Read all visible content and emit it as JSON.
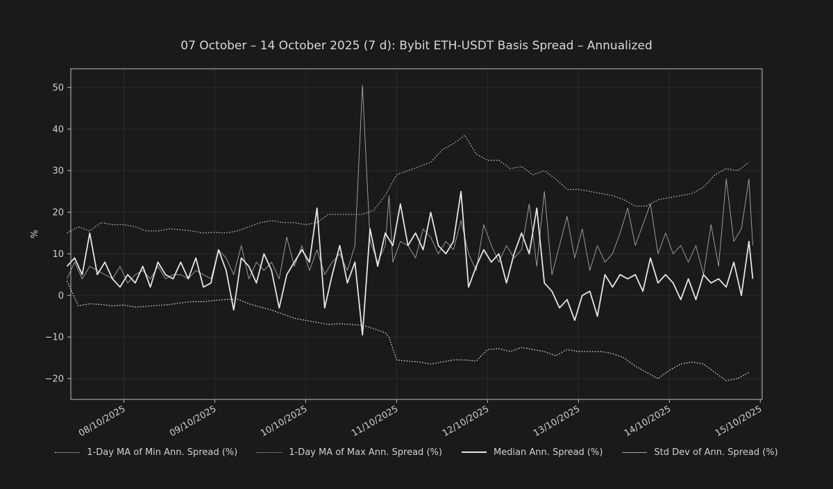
{
  "chart_data": {
    "type": "line",
    "title": "07 October – 14 October 2025 (7 d): Bybit ETH-USDT Basis Spread – Annualized",
    "xlabel": "",
    "ylabel": "%",
    "xlim": [
      "2025-10-07T10:00",
      "2025-10-15T00:30"
    ],
    "ylim": [
      -25,
      54.5
    ],
    "x_ticks": [
      "08/10/2025",
      "09/10/2025",
      "10/10/2025",
      "11/10/2025",
      "12/10/2025",
      "13/10/2025",
      "14/10/2025",
      "15/10/2025"
    ],
    "y_ticks": [
      -20,
      -10,
      0,
      10,
      20,
      30,
      40,
      50
    ],
    "grid": true,
    "legend_position": "bottom",
    "colors": {
      "background": "#1a1a1a",
      "grid": "#2c2c2c",
      "frame": "#bdbdbd",
      "min_ma": "#d9d9d9",
      "max_ma": "#bdbdbd",
      "median": "#e6e6e6",
      "std": "#a8a8a8"
    },
    "series": [
      {
        "name": "1-Day MA of Min Ann. Spread (%)",
        "style": "dotted",
        "x": [
          "2025-10-07T09:00",
          "2025-10-07T12:00",
          "2025-10-07T15:00",
          "2025-10-07T18:00",
          "2025-10-07T21:00",
          "2025-10-08T00:00",
          "2025-10-08T03:00",
          "2025-10-08T06:00",
          "2025-10-08T09:00",
          "2025-10-08T12:00",
          "2025-10-08T15:00",
          "2025-10-08T18:00",
          "2025-10-08T21:00",
          "2025-10-09T00:00",
          "2025-10-09T03:00",
          "2025-10-09T06:00",
          "2025-10-09T09:00",
          "2025-10-09T12:00",
          "2025-10-09T15:00",
          "2025-10-09T18:00",
          "2025-10-09T21:00",
          "2025-10-10T00:00",
          "2025-10-10T03:00",
          "2025-10-10T06:00",
          "2025-10-10T09:00",
          "2025-10-10T12:00",
          "2025-10-10T15:00",
          "2025-10-10T18:00",
          "2025-10-10T21:00",
          "2025-10-10T22:00",
          "2025-10-11T00:00",
          "2025-10-11T03:00",
          "2025-10-11T06:00",
          "2025-10-11T09:00",
          "2025-10-11T12:00",
          "2025-10-11T15:00",
          "2025-10-11T18:00",
          "2025-10-11T21:00",
          "2025-10-12T00:00",
          "2025-10-12T03:00",
          "2025-10-12T06:00",
          "2025-10-12T09:00",
          "2025-10-12T12:00",
          "2025-10-12T15:00",
          "2025-10-12T18:00",
          "2025-10-12T21:00",
          "2025-10-13T00:00",
          "2025-10-13T03:00",
          "2025-10-13T06:00",
          "2025-10-13T09:00",
          "2025-10-13T12:00",
          "2025-10-13T15:00",
          "2025-10-13T18:00",
          "2025-10-13T21:00",
          "2025-10-14T00:00",
          "2025-10-14T03:00",
          "2025-10-14T06:00",
          "2025-10-14T09:00",
          "2025-10-14T12:00",
          "2025-10-14T15:00",
          "2025-10-14T18:00",
          "2025-10-14T21:00"
        ],
        "values": [
          3.5,
          -2.5,
          -2.0,
          -2.2,
          -2.5,
          -2.3,
          -2.8,
          -2.6,
          -2.4,
          -2.2,
          -1.8,
          -1.5,
          -1.5,
          -1.2,
          -1.0,
          -0.9,
          -2.0,
          -2.8,
          -3.5,
          -4.5,
          -5.5,
          -6.0,
          -6.5,
          -7.0,
          -6.8,
          -7.0,
          -7.2,
          -8.0,
          -9.0,
          -10.0,
          -15.5,
          -15.8,
          -16.0,
          -16.5,
          -16.0,
          -15.5,
          -15.5,
          -15.8,
          -13.0,
          -12.8,
          -13.5,
          -12.5,
          -13.0,
          -13.5,
          -14.5,
          -13.0,
          -13.5,
          -13.5,
          -13.5,
          -14.0,
          -15.0,
          -17.0,
          -18.5,
          -20.0,
          -18.0,
          -16.5,
          -16.0,
          -16.5,
          -18.5,
          -20.5,
          -20.0,
          -18.5
        ]
      },
      {
        "name": "1-Day MA of Max Ann. Spread (%)",
        "style": "dotted",
        "x": [
          "2025-10-07T09:00",
          "2025-10-07T12:00",
          "2025-10-07T15:00",
          "2025-10-07T18:00",
          "2025-10-07T21:00",
          "2025-10-08T00:00",
          "2025-10-08T03:00",
          "2025-10-08T06:00",
          "2025-10-08T09:00",
          "2025-10-08T12:00",
          "2025-10-08T15:00",
          "2025-10-08T18:00",
          "2025-10-08T21:00",
          "2025-10-09T00:00",
          "2025-10-09T03:00",
          "2025-10-09T06:00",
          "2025-10-09T09:00",
          "2025-10-09T12:00",
          "2025-10-09T15:00",
          "2025-10-09T18:00",
          "2025-10-09T21:00",
          "2025-10-10T00:00",
          "2025-10-10T03:00",
          "2025-10-10T06:00",
          "2025-10-10T09:00",
          "2025-10-10T12:00",
          "2025-10-10T15:00",
          "2025-10-10T18:00",
          "2025-10-10T21:00",
          "2025-10-11T00:00",
          "2025-10-11T03:00",
          "2025-10-11T06:00",
          "2025-10-11T09:00",
          "2025-10-11T12:00",
          "2025-10-11T15:00",
          "2025-10-11T18:00",
          "2025-10-11T21:00",
          "2025-10-12T00:00",
          "2025-10-12T03:00",
          "2025-10-12T06:00",
          "2025-10-12T09:00",
          "2025-10-12T12:00",
          "2025-10-12T15:00",
          "2025-10-12T18:00",
          "2025-10-12T21:00",
          "2025-10-13T00:00",
          "2025-10-13T03:00",
          "2025-10-13T06:00",
          "2025-10-13T09:00",
          "2025-10-13T12:00",
          "2025-10-13T15:00",
          "2025-10-13T18:00",
          "2025-10-13T21:00",
          "2025-10-14T00:00",
          "2025-10-14T03:00",
          "2025-10-14T06:00",
          "2025-10-14T09:00",
          "2025-10-14T12:00",
          "2025-10-14T15:00",
          "2025-10-14T18:00",
          "2025-10-14T21:00"
        ],
        "values": [
          15.0,
          16.5,
          15.5,
          17.5,
          17.0,
          17.0,
          16.5,
          15.5,
          15.5,
          16.0,
          15.8,
          15.5,
          15.0,
          15.2,
          15.0,
          15.5,
          16.5,
          17.5,
          18.0,
          17.5,
          17.5,
          17.0,
          17.5,
          19.5,
          19.5,
          19.5,
          19.5,
          20.5,
          24.0,
          29.0,
          30.0,
          31.0,
          32.0,
          35.0,
          36.5,
          38.5,
          34.0,
          32.5,
          32.5,
          30.5,
          31.0,
          29.0,
          30.0,
          28.0,
          25.5,
          25.5,
          25.0,
          24.5,
          24.0,
          23.0,
          21.5,
          21.5,
          23.0,
          23.5,
          24.0,
          24.5,
          26.0,
          29.0,
          30.5,
          30.0,
          32.0
        ]
      },
      {
        "name": "Median Ann. Spread (%)",
        "style": "solid-thick",
        "x": [
          "2025-10-07T09:00",
          "2025-10-07T11:00",
          "2025-10-07T13:00",
          "2025-10-07T15:00",
          "2025-10-07T17:00",
          "2025-10-07T19:00",
          "2025-10-07T21:00",
          "2025-10-07T23:00",
          "2025-10-08T01:00",
          "2025-10-08T03:00",
          "2025-10-08T05:00",
          "2025-10-08T07:00",
          "2025-10-08T09:00",
          "2025-10-08T11:00",
          "2025-10-08T13:00",
          "2025-10-08T15:00",
          "2025-10-08T17:00",
          "2025-10-08T19:00",
          "2025-10-08T21:00",
          "2025-10-08T23:00",
          "2025-10-09T01:00",
          "2025-10-09T03:00",
          "2025-10-09T05:00",
          "2025-10-09T07:00",
          "2025-10-09T09:00",
          "2025-10-09T11:00",
          "2025-10-09T13:00",
          "2025-10-09T15:00",
          "2025-10-09T17:00",
          "2025-10-09T19:00",
          "2025-10-09T21:00",
          "2025-10-09T23:00",
          "2025-10-10T01:00",
          "2025-10-10T03:00",
          "2025-10-10T05:00",
          "2025-10-10T07:00",
          "2025-10-10T09:00",
          "2025-10-10T11:00",
          "2025-10-10T13:00",
          "2025-10-10T15:00",
          "2025-10-10T17:00",
          "2025-10-10T19:00",
          "2025-10-10T21:00",
          "2025-10-10T23:00",
          "2025-10-11T01:00",
          "2025-10-11T03:00",
          "2025-10-11T05:00",
          "2025-10-11T07:00",
          "2025-10-11T09:00",
          "2025-10-11T11:00",
          "2025-10-11T13:00",
          "2025-10-11T15:00",
          "2025-10-11T17:00",
          "2025-10-11T19:00",
          "2025-10-11T21:00",
          "2025-10-11T23:00",
          "2025-10-12T01:00",
          "2025-10-12T03:00",
          "2025-10-12T05:00",
          "2025-10-12T07:00",
          "2025-10-12T09:00",
          "2025-10-12T11:00",
          "2025-10-12T13:00",
          "2025-10-12T15:00",
          "2025-10-12T17:00",
          "2025-10-12T19:00",
          "2025-10-12T21:00",
          "2025-10-12T23:00",
          "2025-10-13T01:00",
          "2025-10-13T03:00",
          "2025-10-13T05:00",
          "2025-10-13T07:00",
          "2025-10-13T09:00",
          "2025-10-13T11:00",
          "2025-10-13T13:00",
          "2025-10-13T15:00",
          "2025-10-13T17:00",
          "2025-10-13T19:00",
          "2025-10-13T21:00",
          "2025-10-13T23:00",
          "2025-10-14T01:00",
          "2025-10-14T03:00",
          "2025-10-14T05:00",
          "2025-10-14T07:00",
          "2025-10-14T09:00",
          "2025-10-14T11:00",
          "2025-10-14T13:00",
          "2025-10-14T15:00",
          "2025-10-14T17:00",
          "2025-10-14T19:00",
          "2025-10-14T21:00",
          "2025-10-14T22:00"
        ],
        "values": [
          7,
          9,
          5,
          15,
          5,
          8,
          4,
          2,
          5,
          3,
          7,
          2,
          8,
          5,
          4,
          8,
          4,
          9,
          2,
          3,
          11,
          6,
          -3.5,
          9,
          7,
          3,
          10,
          6,
          -3,
          5,
          8,
          11,
          8,
          21,
          -3,
          5,
          12,
          3,
          8,
          -9.5,
          16,
          7,
          15,
          12,
          22,
          12,
          15,
          11,
          20,
          12,
          10,
          13,
          25,
          2,
          7,
          11,
          8,
          10,
          3,
          10,
          15,
          10,
          21,
          3,
          1,
          -3,
          -1,
          -6,
          0,
          1,
          -5,
          5,
          2,
          5,
          4,
          5,
          1,
          9,
          3,
          5,
          3,
          -1,
          4,
          -1,
          5,
          3,
          4,
          2,
          8,
          0,
          13,
          4
        ]
      },
      {
        "name": "Std Dev of Ann. Spread (%)",
        "style": "solid-thin",
        "x": [
          "2025-10-07T09:00",
          "2025-10-07T11:00",
          "2025-10-07T13:00",
          "2025-10-07T15:00",
          "2025-10-07T17:00",
          "2025-10-07T19:00",
          "2025-10-07T21:00",
          "2025-10-07T23:00",
          "2025-10-08T01:00",
          "2025-10-08T03:00",
          "2025-10-08T05:00",
          "2025-10-08T07:00",
          "2025-10-08T09:00",
          "2025-10-08T11:00",
          "2025-10-08T13:00",
          "2025-10-08T15:00",
          "2025-10-08T17:00",
          "2025-10-08T19:00",
          "2025-10-08T21:00",
          "2025-10-08T23:00",
          "2025-10-09T01:00",
          "2025-10-09T03:00",
          "2025-10-09T05:00",
          "2025-10-09T07:00",
          "2025-10-09T09:00",
          "2025-10-09T11:00",
          "2025-10-09T13:00",
          "2025-10-09T15:00",
          "2025-10-09T17:00",
          "2025-10-09T19:00",
          "2025-10-09T21:00",
          "2025-10-09T23:00",
          "2025-10-10T01:00",
          "2025-10-10T03:00",
          "2025-10-10T05:00",
          "2025-10-10T07:00",
          "2025-10-10T09:00",
          "2025-10-10T11:00",
          "2025-10-10T13:00",
          "2025-10-10T15:00",
          "2025-10-10T17:00",
          "2025-10-10T19:00",
          "2025-10-10T21:00",
          "2025-10-10T22:00",
          "2025-10-10T23:00",
          "2025-10-11T01:00",
          "2025-10-11T03:00",
          "2025-10-11T05:00",
          "2025-10-11T07:00",
          "2025-10-11T09:00",
          "2025-10-11T11:00",
          "2025-10-11T13:00",
          "2025-10-11T15:00",
          "2025-10-11T17:00",
          "2025-10-11T19:00",
          "2025-10-11T21:00",
          "2025-10-11T23:00",
          "2025-10-12T01:00",
          "2025-10-12T03:00",
          "2025-10-12T05:00",
          "2025-10-12T07:00",
          "2025-10-12T09:00",
          "2025-10-12T11:00",
          "2025-10-12T13:00",
          "2025-10-12T15:00",
          "2025-10-12T17:00",
          "2025-10-12T19:00",
          "2025-10-12T21:00",
          "2025-10-12T23:00",
          "2025-10-13T01:00",
          "2025-10-13T03:00",
          "2025-10-13T05:00",
          "2025-10-13T07:00",
          "2025-10-13T09:00",
          "2025-10-13T11:00",
          "2025-10-13T13:00",
          "2025-10-13T15:00",
          "2025-10-13T17:00",
          "2025-10-13T19:00",
          "2025-10-13T21:00",
          "2025-10-13T23:00",
          "2025-10-14T01:00",
          "2025-10-14T03:00",
          "2025-10-14T05:00",
          "2025-10-14T07:00",
          "2025-10-14T09:00",
          "2025-10-14T11:00",
          "2025-10-14T13:00",
          "2025-10-14T15:00",
          "2025-10-14T17:00",
          "2025-10-14T19:00",
          "2025-10-14T21:00",
          "2025-10-14T22:00"
        ],
        "values": [
          4,
          8,
          4,
          7,
          6,
          5,
          4,
          7,
          3,
          5,
          6,
          4,
          7,
          4,
          5,
          5,
          4,
          6,
          5,
          4,
          11,
          9,
          5,
          12,
          4,
          8,
          6,
          8,
          4,
          14,
          7,
          12,
          6,
          11,
          5,
          8,
          10,
          6,
          12,
          50.5,
          13,
          8,
          12,
          24,
          8,
          13,
          12,
          9,
          16,
          14,
          10,
          13,
          11,
          18,
          10,
          6,
          17,
          12,
          8,
          12,
          9,
          11,
          22,
          7,
          25,
          5,
          12,
          19,
          9,
          16,
          6,
          12,
          8,
          10,
          15,
          21,
          12,
          17,
          22,
          10,
          15,
          10,
          12,
          8,
          12,
          5,
          17,
          7,
          28,
          13,
          16,
          28,
          12
        ]
      }
    ]
  }
}
